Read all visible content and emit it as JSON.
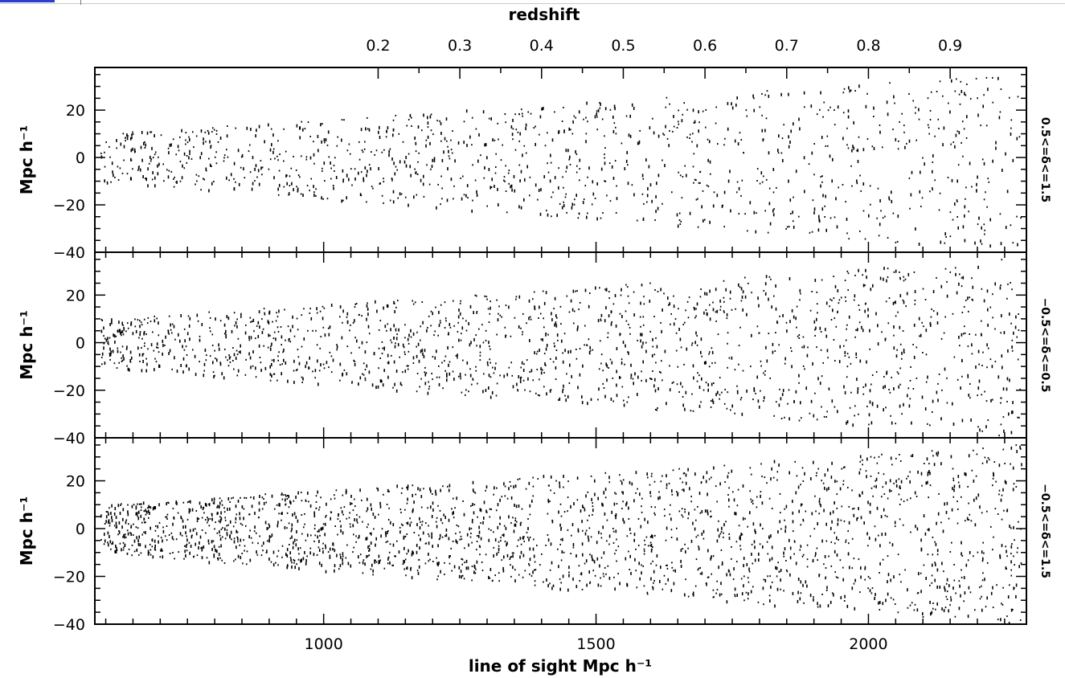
{
  "chart_data": [
    {
      "type": "scatter",
      "x_top_label": "redshift",
      "x_top_ticks": [
        "0.2",
        "0.3",
        "0.4",
        "0.5",
        "0.6",
        "0.7",
        "0.8",
        "0.9"
      ],
      "x_top_tick_positions": [
        1100,
        1250,
        1400,
        1550,
        1700,
        1850,
        2000,
        2150
      ],
      "x_top_tick_redshifts": [
        0.2,
        0.3,
        0.4,
        0.5,
        0.6,
        0.7,
        0.8,
        0.9
      ],
      "xlabel": "",
      "ylabel": "Mpc h⁻¹",
      "y_ticks": [
        "20",
        "0",
        "−20",
        "−40"
      ],
      "xlim": [
        580,
        2290
      ],
      "ylim": [
        -40,
        38
      ],
      "right_label": "0.5<=δ<=1.5",
      "point_density": 0.55
    },
    {
      "type": "scatter",
      "ylabel": "Mpc h⁻¹",
      "y_ticks": [
        "20",
        "0",
        "−20",
        "−40"
      ],
      "xlim": [
        580,
        2290
      ],
      "ylim": [
        -40,
        38
      ],
      "right_label": "−0.5<=δ<=0.5",
      "point_density": 0.75
    },
    {
      "type": "scatter",
      "xlabel": "line of sight Mpc h⁻¹",
      "x_ticks": [
        "1000",
        "1500",
        "2000"
      ],
      "ylabel": "Mpc h⁻¹",
      "y_ticks": [
        "20",
        "0",
        "−20",
        "−40"
      ],
      "xlim": [
        580,
        2290
      ],
      "ylim": [
        -40,
        38
      ],
      "right_label": "−0.5<=δ<=1.5",
      "point_density": 1.0
    }
  ]
}
